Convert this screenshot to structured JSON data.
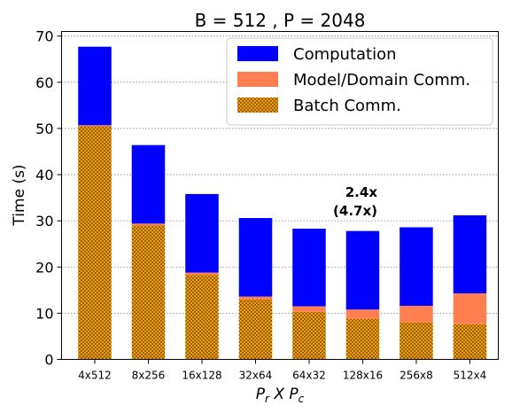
{
  "chart_data": {
    "type": "bar",
    "stacked": true,
    "title": "B = 512 ,  P = 2048",
    "xlabel_base1": "P",
    "xlabel_sub1": "r",
    "xlabel_mid": " X ",
    "xlabel_base2": "P",
    "xlabel_sub2": "c",
    "ylabel": "Time (s)",
    "ylim": [
      0,
      71
    ],
    "yticks": [
      0,
      10,
      20,
      30,
      40,
      50,
      60,
      70
    ],
    "grid": "horizontal-dotted",
    "legend_position": "top-right",
    "categories": [
      "4x512",
      "8x256",
      "16x128",
      "32x64",
      "64x32",
      "128x16",
      "256x8",
      "512x4"
    ],
    "series": [
      {
        "name": "Batch Comm.",
        "color": "#FFA500",
        "pattern": "crosshatch",
        "values": [
          50.5,
          29.0,
          18.3,
          13.0,
          10.3,
          8.8,
          8.0,
          7.6
        ]
      },
      {
        "name": "Model/Domain Comm.",
        "color": "#FF7F50",
        "values": [
          0.2,
          0.4,
          0.5,
          0.6,
          1.2,
          2.0,
          3.6,
          6.7
        ]
      },
      {
        "name": "Computation",
        "color": "#0000FF",
        "values": [
          17.0,
          17.0,
          17.0,
          17.0,
          16.8,
          17.0,
          17.0,
          16.9
        ]
      }
    ],
    "legend_order": [
      "Computation",
      "Model/Domain Comm.",
      "Batch Comm."
    ],
    "annotation": {
      "line1": "2.4x",
      "line2": "(4.7x)"
    }
  }
}
